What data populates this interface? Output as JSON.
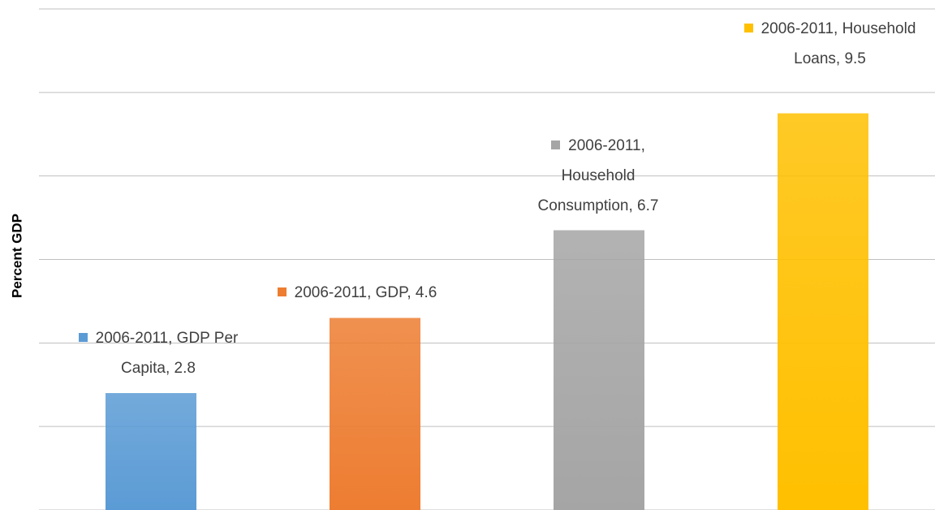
{
  "chart_data": {
    "type": "bar",
    "y_label": "Percent GDP",
    "categories": [
      null,
      null,
      null,
      null
    ],
    "values": [
      2.8,
      4.6,
      6.7,
      9.5
    ],
    "value_labels": [
      "2006-2011, GDP Per Capita, 2.8",
      "2006-2011, GDP, 4.6",
      "2006-2011, Household Consumption, 6.7",
      "2006-2011, Household Loans, 9.5"
    ],
    "colors": [
      "#5b9bd5",
      "#ed7d31",
      "#a5a5a5",
      "#ffc000"
    ],
    "ylim": [
      0,
      12
    ],
    "yticks": [
      0,
      2,
      4,
      6,
      8,
      10,
      12
    ],
    "grid": true
  }
}
